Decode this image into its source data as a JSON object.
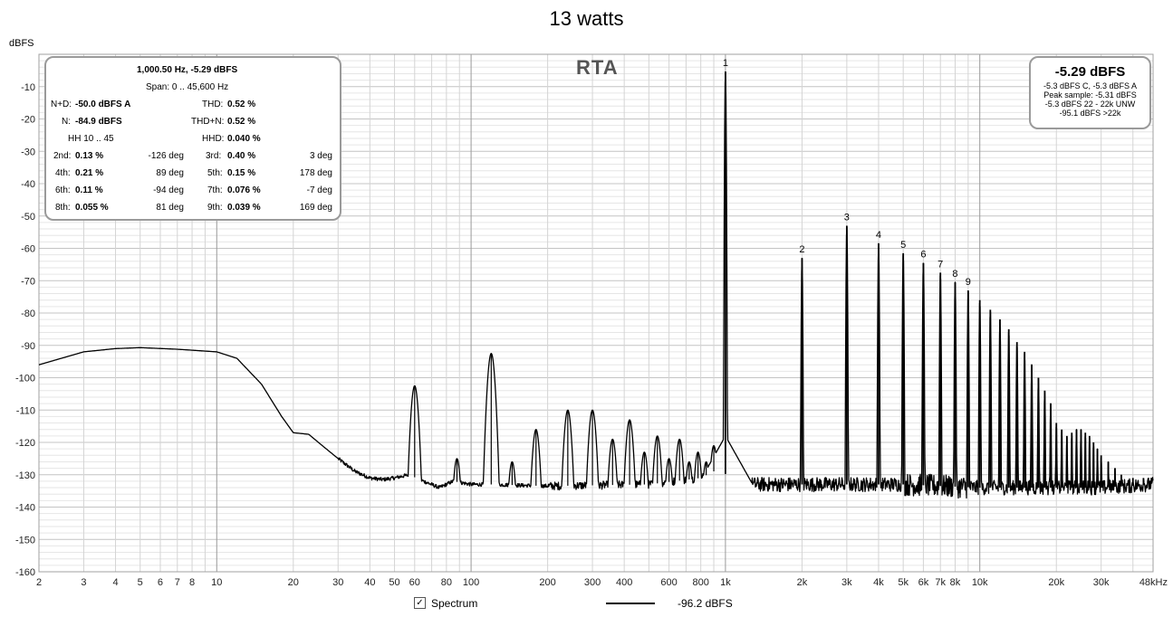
{
  "chart_data": {
    "type": "line",
    "title": "13 watts",
    "ylabel": "dBFS",
    "plot_label": "RTA",
    "x_scale": "log",
    "xlim": [
      2,
      48000
    ],
    "ylim": [
      -160,
      0
    ],
    "grid": true,
    "y_ticks": [
      -10,
      -20,
      -30,
      -40,
      -50,
      -60,
      -70,
      -80,
      -90,
      -100,
      -110,
      -120,
      -130,
      -140,
      -150,
      -160
    ],
    "x_ticks": [
      {
        "v": 2,
        "t": "2"
      },
      {
        "v": 3,
        "t": "3"
      },
      {
        "v": 4,
        "t": "4"
      },
      {
        "v": 5,
        "t": "5"
      },
      {
        "v": 6,
        "t": "6"
      },
      {
        "v": 7,
        "t": "7"
      },
      {
        "v": 8,
        "t": "8"
      },
      {
        "v": 10,
        "t": "10"
      },
      {
        "v": 20,
        "t": "20"
      },
      {
        "v": 30,
        "t": "30"
      },
      {
        "v": 40,
        "t": "40"
      },
      {
        "v": 50,
        "t": "50"
      },
      {
        "v": 60,
        "t": "60"
      },
      {
        "v": 80,
        "t": "80"
      },
      {
        "v": 100,
        "t": "100"
      },
      {
        "v": 200,
        "t": "200"
      },
      {
        "v": 300,
        "t": "300"
      },
      {
        "v": 400,
        "t": "400"
      },
      {
        "v": 600,
        "t": "600"
      },
      {
        "v": 800,
        "t": "800"
      },
      {
        "v": 1000,
        "t": "1k"
      },
      {
        "v": 2000,
        "t": "2k"
      },
      {
        "v": 3000,
        "t": "3k"
      },
      {
        "v": 4000,
        "t": "4k"
      },
      {
        "v": 5000,
        "t": "5k"
      },
      {
        "v": 6000,
        "t": "6k"
      },
      {
        "v": 7000,
        "t": "7k"
      },
      {
        "v": 8000,
        "t": "8k"
      },
      {
        "v": 10000,
        "t": "10k"
      },
      {
        "v": 20000,
        "t": "20k"
      },
      {
        "v": 30000,
        "t": "30k"
      },
      {
        "v": 48000,
        "t": "48kHz"
      }
    ],
    "series": [
      {
        "name": "Spectrum",
        "color": "#000000",
        "baseline": [
          [
            2,
            -96
          ],
          [
            3,
            -92
          ],
          [
            4,
            -91
          ],
          [
            5,
            -90.7
          ],
          [
            7,
            -91.2
          ],
          [
            10,
            -92
          ],
          [
            12,
            -94
          ],
          [
            15,
            -102
          ],
          [
            18,
            -112
          ],
          [
            20,
            -117
          ],
          [
            23,
            -117.5
          ],
          [
            26,
            -121
          ],
          [
            30,
            -125
          ],
          [
            35,
            -129
          ],
          [
            40,
            -131
          ],
          [
            45,
            -131.5
          ],
          [
            50,
            -131
          ],
          [
            57,
            -130
          ],
          [
            65,
            -132
          ],
          [
            75,
            -134
          ],
          [
            85,
            -132
          ],
          [
            100,
            -133
          ],
          [
            120,
            -133
          ],
          [
            200,
            -133.5
          ],
          [
            500,
            -133
          ],
          [
            800,
            -131
          ],
          [
            950,
            -128
          ],
          [
            1100,
            -133
          ],
          [
            2000,
            -133
          ],
          [
            5000,
            -133
          ],
          [
            10000,
            -134
          ],
          [
            20000,
            -134
          ],
          [
            30000,
            -134
          ],
          [
            48000,
            -133
          ]
        ],
        "noise_spurs": [
          {
            "f": 60,
            "db": -102.5
          },
          {
            "f": 88,
            "db": -125
          },
          {
            "f": 120,
            "db": -92.5
          },
          {
            "f": 145,
            "db": -126
          },
          {
            "f": 180,
            "db": -116
          },
          {
            "f": 240,
            "db": -110
          },
          {
            "f": 300,
            "db": -110
          },
          {
            "f": 360,
            "db": -119
          },
          {
            "f": 420,
            "db": -113
          },
          {
            "f": 480,
            "db": -123
          },
          {
            "f": 540,
            "db": -118
          },
          {
            "f": 600,
            "db": -125
          },
          {
            "f": 660,
            "db": -119
          },
          {
            "f": 720,
            "db": -126
          },
          {
            "f": 780,
            "db": -123
          },
          {
            "f": 840,
            "db": -126
          },
          {
            "f": 900,
            "db": -121
          }
        ],
        "harmonics": [
          {
            "n": "1",
            "f": 1000,
            "db": -5.3
          },
          {
            "n": "2",
            "f": 2000,
            "db": -63
          },
          {
            "n": "3",
            "f": 3000,
            "db": -53
          },
          {
            "n": "4",
            "f": 4000,
            "db": -58.5
          },
          {
            "n": "5",
            "f": 5000,
            "db": -61.5
          },
          {
            "n": "6",
            "f": 6000,
            "db": -64.5
          },
          {
            "n": "7",
            "f": 7000,
            "db": -67.5
          },
          {
            "n": "8",
            "f": 8000,
            "db": -70.5
          },
          {
            "n": "9",
            "f": 9000,
            "db": -73
          },
          {
            "n": "",
            "f": 10000,
            "db": -76
          },
          {
            "n": "",
            "f": 11000,
            "db": -79
          },
          {
            "n": "",
            "f": 12000,
            "db": -82
          },
          {
            "n": "",
            "f": 13000,
            "db": -85
          },
          {
            "n": "",
            "f": 14000,
            "db": -89
          },
          {
            "n": "",
            "f": 15000,
            "db": -92
          },
          {
            "n": "",
            "f": 16000,
            "db": -96
          },
          {
            "n": "",
            "f": 17000,
            "db": -100
          },
          {
            "n": "",
            "f": 18000,
            "db": -104
          },
          {
            "n": "",
            "f": 19000,
            "db": -108
          },
          {
            "n": "",
            "f": 20000,
            "db": -114
          },
          {
            "n": "",
            "f": 21000,
            "db": -116
          },
          {
            "n": "",
            "f": 22000,
            "db": -118
          },
          {
            "n": "",
            "f": 23000,
            "db": -117
          },
          {
            "n": "",
            "f": 24000,
            "db": -116
          },
          {
            "n": "",
            "f": 25000,
            "db": -116
          },
          {
            "n": "",
            "f": 26000,
            "db": -117
          },
          {
            "n": "",
            "f": 27000,
            "db": -118
          },
          {
            "n": "",
            "f": 28000,
            "db": -120
          },
          {
            "n": "",
            "f": 29000,
            "db": -122
          },
          {
            "n": "",
            "f": 30000,
            "db": -124
          },
          {
            "n": "",
            "f": 32000,
            "db": -126
          },
          {
            "n": "",
            "f": 34000,
            "db": -128
          },
          {
            "n": "",
            "f": 36000,
            "db": -130
          },
          {
            "n": "",
            "f": 40000,
            "db": -131
          },
          {
            "n": "",
            "f": 44000,
            "db": -131
          }
        ]
      }
    ]
  },
  "stats": {
    "header1": "1,000.50 Hz, -5.29 dBFS",
    "header2": "Span: 0 .. 45,600 Hz",
    "nd_label": "N+D:",
    "nd_value": "-50.0 dBFS A",
    "thd_label": "THD:",
    "thd_value": "0.52 %",
    "n_label": "N:",
    "n_value": "-84.9 dBFS",
    "thdn_label": "THD+N:",
    "thdn_value": "0.52 %",
    "hh_label": "HH 10 .. 45",
    "hhd_label": "HHD:",
    "hhd_value": "0.040 %",
    "rows": [
      {
        "l1": "2nd:",
        "v1": "0.13 %",
        "d1": "-126 deg",
        "l2": "3rd:",
        "v2": "0.40 %",
        "d2": "3 deg"
      },
      {
        "l1": "4th:",
        "v1": "0.21 %",
        "d1": "89 deg",
        "l2": "5th:",
        "v2": "0.15 %",
        "d2": "178 deg"
      },
      {
        "l1": "6th:",
        "v1": "0.11 %",
        "d1": "-94 deg",
        "l2": "7th:",
        "v2": "0.076 %",
        "d2": "-7 deg"
      },
      {
        "l1": "8th:",
        "v1": "0.055 %",
        "d1": "81 deg",
        "l2": "9th:",
        "v2": "0.039 %",
        "d2": "169 deg"
      }
    ]
  },
  "level": {
    "main": "-5.29 dBFS",
    "line1": "-5.3 dBFS C, -5.3 dBFS A",
    "line2": "Peak sample: -5.31 dBFS",
    "line3": "-5.3 dBFS 22 - 22k UNW",
    "line4": "-95.1 dBFS >22k"
  },
  "legend": {
    "checkbox_checked": true,
    "checkbox_mark": "✓",
    "spectrum_label": "Spectrum",
    "trace_value": "-96.2 dBFS"
  }
}
